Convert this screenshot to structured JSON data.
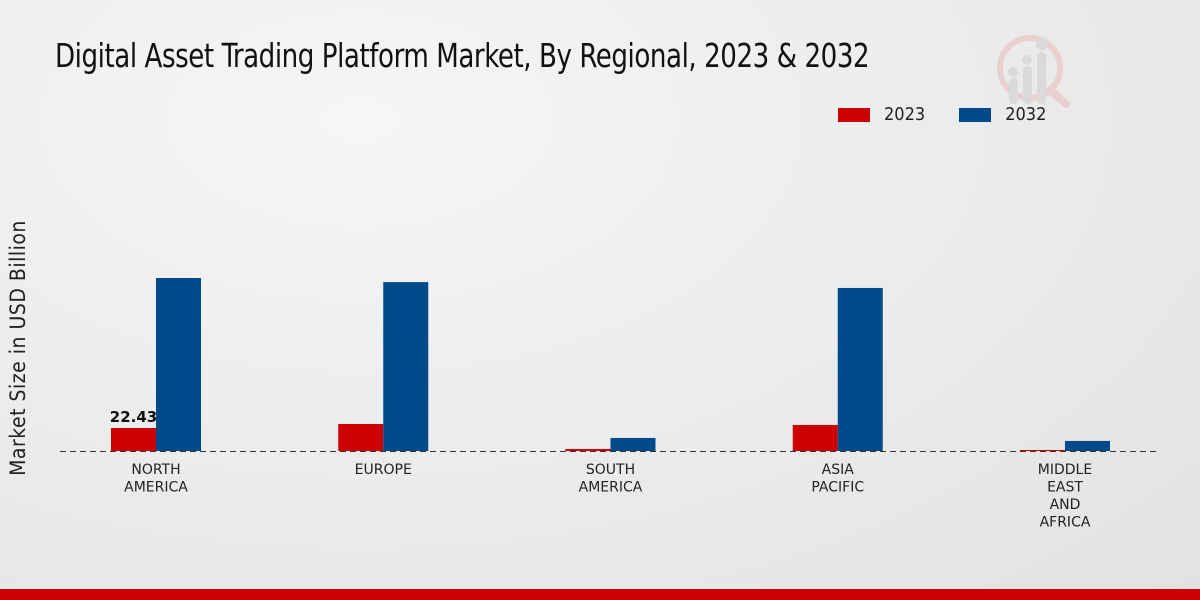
{
  "chart_data": {
    "type": "bar",
    "title": "Digital Asset Trading Platform Market, By Regional, 2023 & 2032",
    "xlabel": "",
    "ylabel": "Market Size in USD Billion",
    "categories": [
      "NORTH\nAMERICA",
      "EUROPE",
      "SOUTH\nAMERICA",
      "ASIA\nPACIFIC",
      "MIDDLE\nEAST\nAND\nAFRICA"
    ],
    "series": [
      {
        "name": "2023",
        "color": "#cc0000",
        "values": [
          22.43,
          26.3,
          2.0,
          25.4,
          1.0
        ]
      },
      {
        "name": "2032",
        "color": "#004a8c",
        "values": [
          168.7,
          164.7,
          12.7,
          159.0,
          9.8
        ]
      }
    ],
    "data_labels": [
      {
        "series": "2023",
        "category_index": 0,
        "text": "22.43"
      }
    ],
    "ylim": [
      0,
      200
    ],
    "grid": false,
    "legend": "top-right"
  }
}
